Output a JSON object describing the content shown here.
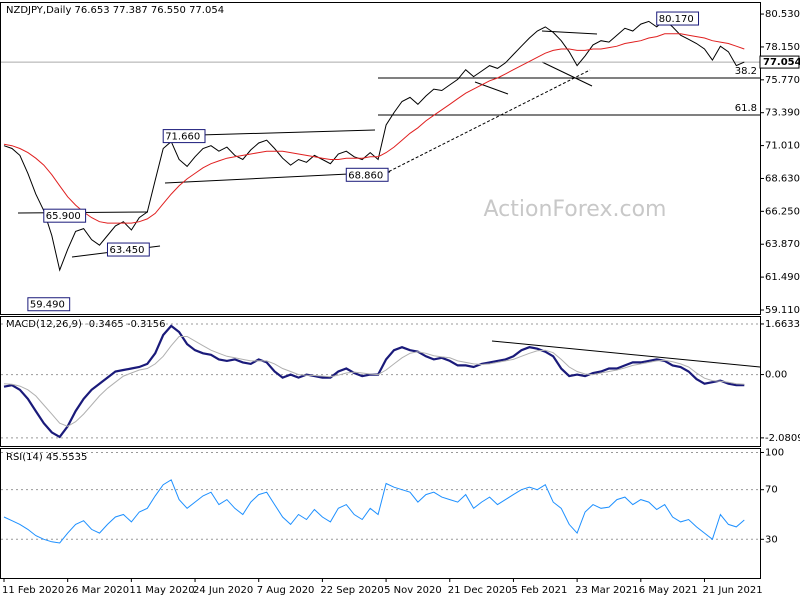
{
  "watermark": "ActionForex.com",
  "chart_data": [
    {
      "type": "line",
      "title": "NZDJPY,Daily  76.653 77.387 76.550 77.054",
      "ylim": [
        58.82,
        81.33
      ],
      "yticks": [
        {
          "value": 80.53,
          "label": "80.530"
        },
        {
          "value": 78.15,
          "label": "78.150"
        },
        {
          "value": 75.77,
          "label": "75.770"
        },
        {
          "value": 73.39,
          "label": "73.390"
        },
        {
          "value": 71.01,
          "label": "71.010"
        },
        {
          "value": 68.63,
          "label": "68.630"
        },
        {
          "value": 66.25,
          "label": "66.250"
        },
        {
          "value": 63.87,
          "label": "63.870"
        },
        {
          "value": 61.49,
          "label": "61.490"
        },
        {
          "value": 59.11,
          "label": "59.110"
        }
      ],
      "last": {
        "value": 77.054,
        "label": "77.054"
      },
      "levels": [
        {
          "label": "38.2",
          "value": 75.9
        },
        {
          "label": "61.8",
          "value": 73.22
        }
      ],
      "annotations": [
        {
          "label": "80.170",
          "value": 80.17,
          "x": 82
        },
        {
          "label": "71.660",
          "value": 71.66,
          "x": 20
        },
        {
          "label": "65.900",
          "value": 65.9,
          "x": 5
        },
        {
          "label": "63.450",
          "value": 63.45,
          "x": 13
        },
        {
          "label": "59.490",
          "value": 59.49,
          "x": 3
        },
        {
          "label": "68.860",
          "value": 68.86,
          "x": 43
        }
      ],
      "series": [
        {
          "color": "#000000",
          "values": [
            71.0,
            70.8,
            70.3,
            69.0,
            67.5,
            66.3,
            64.5,
            62.0,
            63.5,
            64.8,
            65.0,
            64.2,
            63.8,
            64.5,
            65.2,
            65.5,
            64.9,
            65.8,
            66.2,
            68.5,
            70.8,
            71.3,
            70.0,
            69.5,
            70.2,
            70.8,
            71.0,
            70.6,
            70.9,
            70.3,
            70.0,
            70.7,
            71.2,
            71.4,
            70.8,
            70.1,
            69.6,
            70.0,
            69.8,
            70.3,
            70.0,
            69.7,
            70.4,
            70.6,
            70.2,
            70.0,
            70.5,
            70.0,
            72.5,
            73.4,
            74.2,
            74.5,
            74.0,
            74.6,
            75.1,
            75.0,
            75.4,
            75.8,
            76.5,
            76.0,
            76.4,
            76.8,
            76.6,
            77.0,
            77.6,
            78.2,
            78.8,
            79.3,
            79.6,
            79.2,
            78.6,
            77.8,
            76.8,
            77.5,
            78.3,
            78.6,
            78.5,
            79.0,
            79.5,
            79.3,
            79.8,
            80.0,
            79.6,
            80.1,
            79.6,
            79.0,
            78.7,
            78.4,
            78.0,
            77.2,
            78.2,
            77.8,
            76.8,
            77.05
          ]
        },
        {
          "color": "#e02020",
          "values": [
            71.1,
            71.0,
            70.8,
            70.5,
            70.1,
            69.6,
            68.9,
            68.1,
            67.3,
            66.7,
            66.2,
            65.8,
            65.5,
            65.4,
            65.4,
            65.4,
            65.4,
            65.5,
            65.7,
            66.1,
            66.8,
            67.5,
            68.1,
            68.6,
            69.0,
            69.4,
            69.7,
            69.9,
            70.1,
            70.2,
            70.3,
            70.4,
            70.5,
            70.6,
            70.6,
            70.6,
            70.5,
            70.4,
            70.3,
            70.2,
            70.1,
            70.0,
            70.0,
            70.1,
            70.1,
            70.1,
            70.2,
            70.2,
            70.5,
            70.9,
            71.4,
            71.9,
            72.3,
            72.8,
            73.2,
            73.6,
            74.0,
            74.4,
            74.8,
            75.1,
            75.4,
            75.7,
            75.9,
            76.2,
            76.5,
            76.8,
            77.1,
            77.4,
            77.7,
            77.9,
            78.0,
            78.0,
            77.9,
            77.9,
            78.0,
            78.0,
            78.1,
            78.2,
            78.4,
            78.5,
            78.6,
            78.8,
            78.9,
            79.1,
            79.1,
            79.1,
            79.0,
            78.9,
            78.8,
            78.6,
            78.5,
            78.4,
            78.2,
            78.0
          ]
        }
      ]
    },
    {
      "type": "line",
      "title": "MACD(12,26,9) -0.3465 -0.3156",
      "ylim": [
        -2.348,
        1.892
      ],
      "yticks": [
        1.6633,
        {
          "value": 0,
          "label": "0.00"
        },
        -2.0809
      ],
      "series": [
        {
          "color": "#1a1a7a",
          "width": 2.2,
          "values": [
            -0.4,
            -0.35,
            -0.5,
            -0.8,
            -1.2,
            -1.6,
            -1.9,
            -2.05,
            -1.7,
            -1.2,
            -0.8,
            -0.5,
            -0.3,
            -0.1,
            0.1,
            0.15,
            0.2,
            0.25,
            0.35,
            0.7,
            1.3,
            1.6,
            1.4,
            1.0,
            0.8,
            0.7,
            0.65,
            0.5,
            0.45,
            0.5,
            0.4,
            0.35,
            0.5,
            0.4,
            0.1,
            -0.1,
            0.0,
            -0.1,
            0.0,
            -0.05,
            -0.1,
            -0.1,
            0.1,
            0.2,
            0.05,
            -0.05,
            0.0,
            0.0,
            0.5,
            0.8,
            0.9,
            0.8,
            0.75,
            0.6,
            0.5,
            0.55,
            0.45,
            0.3,
            0.3,
            0.25,
            0.35,
            0.4,
            0.45,
            0.5,
            0.6,
            0.8,
            0.9,
            0.85,
            0.75,
            0.6,
            0.2,
            -0.05,
            0.0,
            -0.05,
            0.05,
            0.1,
            0.2,
            0.2,
            0.3,
            0.4,
            0.4,
            0.45,
            0.5,
            0.45,
            0.3,
            0.25,
            0.1,
            -0.15,
            -0.3,
            -0.25,
            -0.2,
            -0.3,
            -0.35,
            -0.35
          ]
        },
        {
          "color": "#b0b0b0",
          "width": 1,
          "values": [
            -0.3,
            -0.32,
            -0.38,
            -0.5,
            -0.7,
            -1.0,
            -1.3,
            -1.6,
            -1.7,
            -1.55,
            -1.3,
            -1.0,
            -0.7,
            -0.45,
            -0.25,
            -0.05,
            0.05,
            0.15,
            0.2,
            0.35,
            0.6,
            0.95,
            1.25,
            1.25,
            1.1,
            0.95,
            0.8,
            0.7,
            0.6,
            0.55,
            0.5,
            0.45,
            0.45,
            0.45,
            0.35,
            0.2,
            0.1,
            0.0,
            -0.02,
            -0.03,
            -0.05,
            -0.07,
            -0.02,
            0.05,
            0.08,
            0.05,
            0.02,
            0.0,
            0.15,
            0.35,
            0.55,
            0.7,
            0.75,
            0.7,
            0.62,
            0.58,
            0.55,
            0.45,
            0.4,
            0.35,
            0.33,
            0.35,
            0.4,
            0.45,
            0.5,
            0.6,
            0.7,
            0.78,
            0.8,
            0.72,
            0.5,
            0.25,
            0.1,
            0.02,
            0.0,
            0.05,
            0.1,
            0.15,
            0.22,
            0.3,
            0.35,
            0.4,
            0.45,
            0.47,
            0.42,
            0.35,
            0.25,
            0.05,
            -0.12,
            -0.2,
            -0.22,
            -0.25,
            -0.3,
            -0.32
          ]
        }
      ]
    },
    {
      "type": "line",
      "title": "RSI(14) 45.5535",
      "ylim": [
        -1.2,
        102.8
      ],
      "yticks": [
        100,
        70,
        30
      ],
      "categories": [
        "11 Feb 2020",
        null,
        null,
        null,
        null,
        null,
        null,
        null,
        "26 Mar 2020",
        null,
        null,
        null,
        null,
        null,
        null,
        null,
        "11 May 2020",
        null,
        null,
        null,
        null,
        null,
        null,
        null,
        "24 Jun 2020",
        null,
        null,
        null,
        null,
        null,
        null,
        null,
        "7 Aug 2020",
        null,
        null,
        null,
        null,
        null,
        null,
        null,
        "22 Sep 2020",
        null,
        null,
        null,
        null,
        null,
        null,
        null,
        "5 Nov 2020",
        null,
        null,
        null,
        null,
        null,
        null,
        null,
        "21 Dec 2020",
        null,
        null,
        null,
        null,
        null,
        null,
        null,
        "5 Feb 2021",
        null,
        null,
        null,
        null,
        null,
        null,
        null,
        "23 Mar 2021",
        null,
        null,
        null,
        null,
        null,
        null,
        null,
        "6 May 2021",
        null,
        null,
        null,
        null,
        null,
        null,
        null,
        "21 Jun 2021",
        null,
        null,
        null,
        null,
        null
      ],
      "series": [
        {
          "color": "#1e90ff",
          "width": 1,
          "values": [
            48,
            45,
            42,
            38,
            33,
            30,
            28,
            27,
            35,
            42,
            45,
            38,
            35,
            42,
            48,
            50,
            44,
            52,
            55,
            65,
            74,
            78,
            62,
            55,
            60,
            65,
            68,
            58,
            62,
            55,
            50,
            60,
            66,
            68,
            58,
            48,
            42,
            50,
            46,
            54,
            48,
            44,
            55,
            58,
            50,
            46,
            55,
            50,
            75,
            72,
            70,
            68,
            60,
            66,
            68,
            64,
            62,
            60,
            66,
            55,
            60,
            64,
            58,
            62,
            66,
            70,
            72,
            70,
            74,
            60,
            55,
            42,
            35,
            52,
            58,
            55,
            56,
            62,
            64,
            58,
            62,
            60,
            54,
            58,
            48,
            44,
            46,
            40,
            35,
            30,
            50,
            42,
            40,
            45.55
          ]
        }
      ]
    }
  ]
}
